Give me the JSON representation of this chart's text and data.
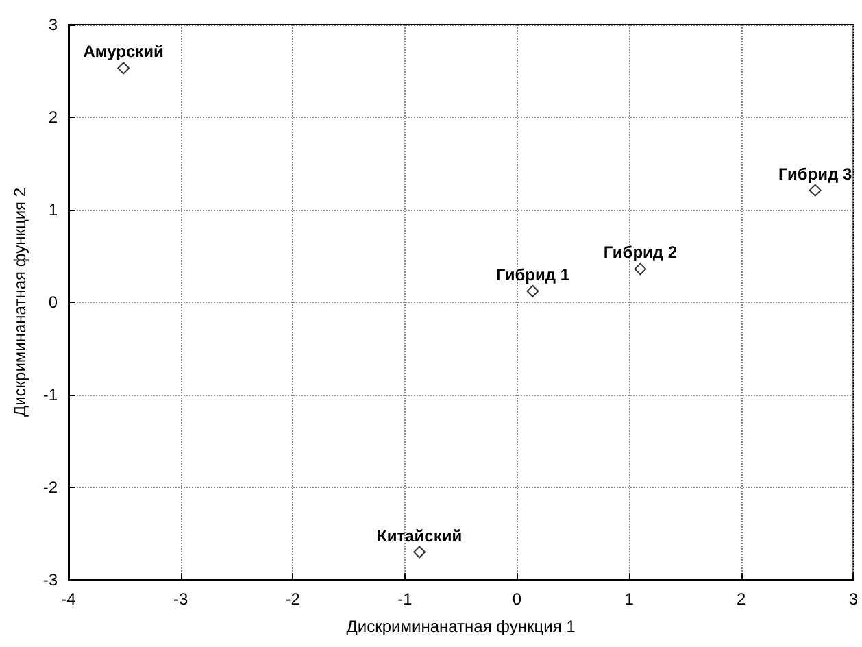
{
  "chart_data": {
    "type": "scatter",
    "xlabel": "Дискриминанатная функция 1",
    "ylabel": "Дискриминанатная функция 2",
    "x": [
      -3.51,
      0.14,
      1.1,
      2.66,
      -0.87
    ],
    "values": [
      2.53,
      0.12,
      0.36,
      1.21,
      -2.7
    ],
    "color": "#000000",
    "marker": "diamond",
    "xlim": [
      -4,
      3
    ],
    "xticks": [
      -4,
      -3,
      -2,
      -1,
      0,
      1,
      2,
      3
    ],
    "ylim": [
      -3,
      3
    ],
    "yticks": [
      -3,
      -2,
      -1,
      0,
      1,
      2,
      3
    ],
    "grid": true,
    "annotations": [
      {
        "text": "Амурский",
        "x": -3.51,
        "y": 2.53
      },
      {
        "text": "Гибрид 1",
        "x": 0.14,
        "y": 0.12
      },
      {
        "text": "Гибрид 2",
        "x": 1.1,
        "y": 0.36
      },
      {
        "text": "Гибрид 3",
        "x": 2.66,
        "y": 1.21
      },
      {
        "text": "Китайский",
        "x": -0.87,
        "y": -2.7
      }
    ]
  }
}
